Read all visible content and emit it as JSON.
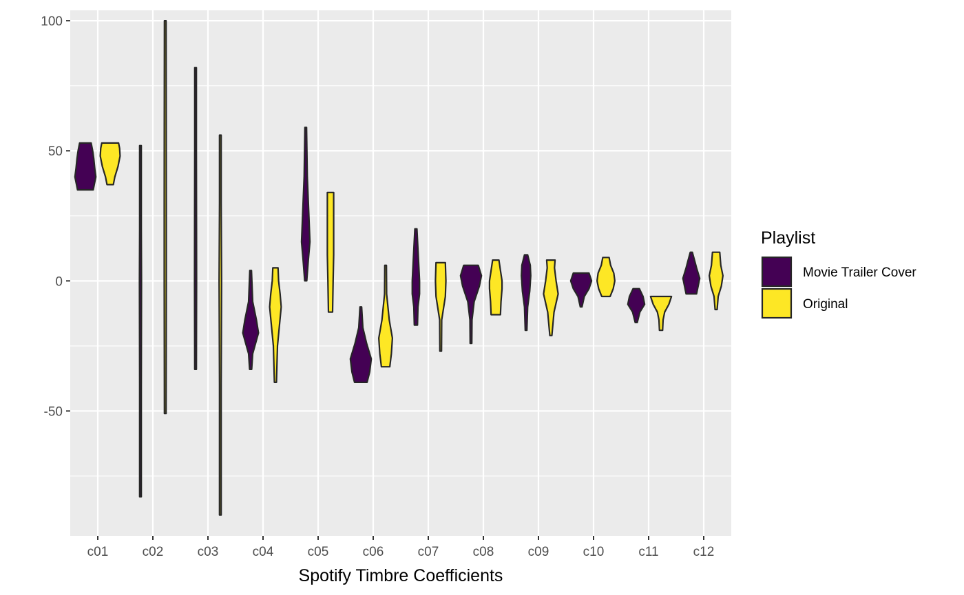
{
  "chart_data": {
    "type": "violin",
    "title": "",
    "xlabel": "Spotify Timbre Coefficients",
    "ylabel": "",
    "ylim": [
      -98,
      104
    ],
    "y_ticks": [
      -50,
      0,
      50,
      100
    ],
    "categories": [
      "c01",
      "c02",
      "c03",
      "c04",
      "c05",
      "c06",
      "c07",
      "c08",
      "c09",
      "c10",
      "c11",
      "c12"
    ],
    "grid": true,
    "legend": {
      "title": "Playlist",
      "placement": "right",
      "entries": [
        {
          "label": "Movie Trailer Cover",
          "color": "#440154"
        },
        {
          "label": "Original",
          "color": "#fde725"
        }
      ]
    },
    "series": [
      {
        "name": "Movie Trailer Cover",
        "color": "#440154",
        "violins": [
          {
            "category": "c01",
            "min": 35,
            "max": 53,
            "profile": [
              [
                35,
                0.75
              ],
              [
                37,
                0.85
              ],
              [
                40,
                1.0
              ],
              [
                43,
                0.9
              ],
              [
                47,
                0.8
              ],
              [
                50,
                0.7
              ],
              [
                53,
                0.55
              ]
            ]
          },
          {
            "category": "c02",
            "min": -83,
            "max": 52,
            "profile": [
              [
                -83,
                0.05
              ],
              [
                -40,
                0.06
              ],
              [
                0,
                0.1
              ],
              [
                20,
                0.08
              ],
              [
                52,
                0.05
              ]
            ]
          },
          {
            "category": "c03",
            "min": -34,
            "max": 82,
            "profile": [
              [
                -34,
                0.05
              ],
              [
                0,
                0.1
              ],
              [
                20,
                0.09
              ],
              [
                50,
                0.06
              ],
              [
                82,
                0.04
              ]
            ]
          },
          {
            "category": "c04",
            "min": -34,
            "max": 4,
            "profile": [
              [
                -34,
                0.1
              ],
              [
                -28,
                0.2
              ],
              [
                -20,
                0.75
              ],
              [
                -15,
                0.55
              ],
              [
                -8,
                0.2
              ],
              [
                4,
                0.05
              ]
            ]
          },
          {
            "category": "c05",
            "min": 0,
            "max": 59,
            "profile": [
              [
                0,
                0.1
              ],
              [
                8,
                0.25
              ],
              [
                15,
                0.4
              ],
              [
                25,
                0.3
              ],
              [
                40,
                0.15
              ],
              [
                59,
                0.06
              ]
            ]
          },
          {
            "category": "c06",
            "min": -39,
            "max": -10,
            "profile": [
              [
                -39,
                0.6
              ],
              [
                -35,
                0.85
              ],
              [
                -30,
                1.0
              ],
              [
                -24,
                0.55
              ],
              [
                -18,
                0.2
              ],
              [
                -10,
                0.05
              ]
            ]
          },
          {
            "category": "c07",
            "min": -17,
            "max": 20,
            "profile": [
              [
                -17,
                0.15
              ],
              [
                -10,
                0.2
              ],
              [
                -5,
                0.35
              ],
              [
                0,
                0.35
              ],
              [
                8,
                0.25
              ],
              [
                20,
                0.1
              ]
            ]
          },
          {
            "category": "c08",
            "min": -24,
            "max": 6,
            "profile": [
              [
                -24,
                0.04
              ],
              [
                -15,
                0.1
              ],
              [
                -8,
                0.3
              ],
              [
                -2,
                0.8
              ],
              [
                2,
                1.0
              ],
              [
                6,
                0.7
              ]
            ]
          },
          {
            "category": "c09",
            "min": -19,
            "max": 10,
            "profile": [
              [
                -19,
                0.05
              ],
              [
                -10,
                0.15
              ],
              [
                -4,
                0.35
              ],
              [
                2,
                0.45
              ],
              [
                6,
                0.4
              ],
              [
                10,
                0.15
              ]
            ]
          },
          {
            "category": "c10",
            "min": -10,
            "max": 3,
            "profile": [
              [
                -10,
                0.05
              ],
              [
                -6,
                0.3
              ],
              [
                -3,
                0.75
              ],
              [
                0,
                1.0
              ],
              [
                3,
                0.75
              ]
            ]
          },
          {
            "category": "c11",
            "min": -16,
            "max": -3,
            "profile": [
              [
                -16,
                0.1
              ],
              [
                -12,
                0.35
              ],
              [
                -9,
                0.8
              ],
              [
                -6,
                0.65
              ],
              [
                -3,
                0.3
              ]
            ]
          },
          {
            "category": "c12",
            "min": -5,
            "max": 11,
            "profile": [
              [
                -5,
                0.5
              ],
              [
                -2,
                0.65
              ],
              [
                1,
                0.8
              ],
              [
                5,
                0.5
              ],
              [
                8,
                0.3
              ],
              [
                11,
                0.1
              ]
            ]
          }
        ]
      },
      {
        "name": "Original",
        "color": "#fde725",
        "violins": [
          {
            "category": "c01",
            "min": 37,
            "max": 53,
            "profile": [
              [
                37,
                0.3
              ],
              [
                40,
                0.45
              ],
              [
                44,
                0.75
              ],
              [
                48,
                0.95
              ],
              [
                51,
                0.9
              ],
              [
                53,
                0.8
              ]
            ]
          },
          {
            "category": "c02",
            "min": -51,
            "max": 100,
            "profile": [
              [
                -51,
                0.04
              ],
              [
                0,
                0.1
              ],
              [
                30,
                0.1
              ],
              [
                60,
                0.09
              ],
              [
                100,
                0.07
              ]
            ]
          },
          {
            "category": "c03",
            "min": -90,
            "max": 56,
            "profile": [
              [
                -90,
                0.05
              ],
              [
                -40,
                0.06
              ],
              [
                0,
                0.12
              ],
              [
                30,
                0.08
              ],
              [
                56,
                0.06
              ]
            ]
          },
          {
            "category": "c04",
            "min": -39,
            "max": 5,
            "profile": [
              [
                -39,
                0.1
              ],
              [
                -25,
                0.2
              ],
              [
                -10,
                0.55
              ],
              [
                -5,
                0.45
              ],
              [
                0,
                0.3
              ],
              [
                5,
                0.25
              ]
            ]
          },
          {
            "category": "c05",
            "min": -12,
            "max": 34,
            "profile": [
              [
                -12,
                0.2
              ],
              [
                0,
                0.25
              ],
              [
                10,
                0.3
              ],
              [
                20,
                0.3
              ],
              [
                34,
                0.3
              ]
            ]
          },
          {
            "category": "c06",
            "min": -33,
            "max": 6,
            "profile": [
              [
                -33,
                0.4
              ],
              [
                -28,
                0.55
              ],
              [
                -22,
                0.65
              ],
              [
                -15,
                0.35
              ],
              [
                -5,
                0.1
              ],
              [
                6,
                0.05
              ]
            ]
          },
          {
            "category": "c07",
            "min": -27,
            "max": 7,
            "profile": [
              [
                -27,
                0.04
              ],
              [
                -15,
                0.1
              ],
              [
                -6,
                0.45
              ],
              [
                0,
                0.5
              ],
              [
                7,
                0.45
              ]
            ]
          },
          {
            "category": "c08",
            "min": -13,
            "max": 8,
            "profile": [
              [
                -13,
                0.45
              ],
              [
                -8,
                0.5
              ],
              [
                -3,
                0.6
              ],
              [
                0,
                0.6
              ],
              [
                4,
                0.45
              ],
              [
                8,
                0.3
              ]
            ]
          },
          {
            "category": "c09",
            "min": -21,
            "max": 8,
            "profile": [
              [
                -21,
                0.1
              ],
              [
                -12,
                0.3
              ],
              [
                -5,
                0.7
              ],
              [
                0,
                0.5
              ],
              [
                5,
                0.35
              ],
              [
                8,
                0.4
              ]
            ]
          },
          {
            "category": "c10",
            "min": -6,
            "max": 9,
            "profile": [
              [
                -6,
                0.4
              ],
              [
                -3,
                0.7
              ],
              [
                0,
                0.85
              ],
              [
                3,
                0.75
              ],
              [
                6,
                0.45
              ],
              [
                9,
                0.3
              ]
            ]
          },
          {
            "category": "c11",
            "min": -19,
            "max": -6,
            "profile": [
              [
                -19,
                0.15
              ],
              [
                -15,
                0.2
              ],
              [
                -12,
                0.35
              ],
              [
                -9,
                0.75
              ],
              [
                -6,
                1.0
              ]
            ]
          },
          {
            "category": "c12",
            "min": -11,
            "max": 11,
            "profile": [
              [
                -11,
                0.1
              ],
              [
                -6,
                0.2
              ],
              [
                -2,
                0.5
              ],
              [
                2,
                0.65
              ],
              [
                6,
                0.45
              ],
              [
                11,
                0.35
              ]
            ]
          }
        ]
      }
    ]
  }
}
